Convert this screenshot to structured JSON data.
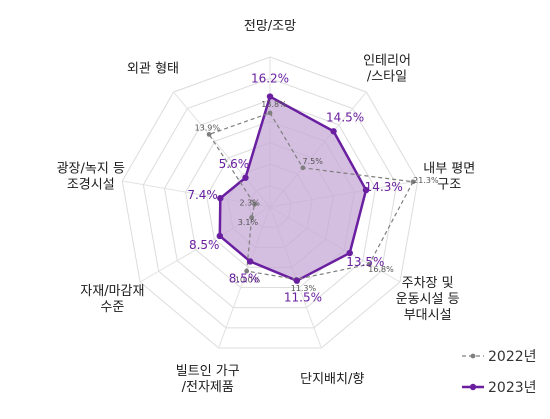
{
  "chart_data": {
    "type": "radar",
    "categories": [
      [
        "전망/조망"
      ],
      [
        "인테리어",
        "/스타일"
      ],
      [
        "내부 평면",
        "구조"
      ],
      [
        "주차장 및",
        "운동시설 등",
        "부대시설"
      ],
      [
        "단지배치/향"
      ],
      [
        "빌트인 가구",
        "/전자제품"
      ],
      [
        "자재/마감재",
        "수준"
      ],
      [
        "광장/녹지 등",
        "조경시설"
      ],
      [
        "외관 형태"
      ]
    ],
    "series": [
      {
        "name": "2022년",
        "values": [
          13.8,
          7.5,
          21.3,
          16.8,
          11.3,
          10.0,
          3.1,
          2.3,
          13.9
        ],
        "labels": [
          "13.8%",
          "7.5%",
          "21.3%",
          "16.8%",
          "11.3%",
          "10.0%",
          "3.1%",
          "2.3%",
          "13.9%"
        ],
        "color": "#7f7f7f",
        "style": "dashed"
      },
      {
        "name": "2023년",
        "values": [
          16.2,
          14.5,
          14.3,
          13.5,
          11.5,
          8.5,
          8.5,
          7.4,
          5.6
        ],
        "labels": [
          "16.2%",
          "14.5%",
          "14.3%",
          "13.5%",
          "11.5%",
          "8.5%",
          "8.5%",
          "7.4%",
          "5.6%"
        ],
        "color": "#6a1fa0",
        "fill": "#c6a9d6",
        "style": "solid"
      }
    ],
    "rmax": 22,
    "grid": true,
    "legend": "bottom-right"
  }
}
